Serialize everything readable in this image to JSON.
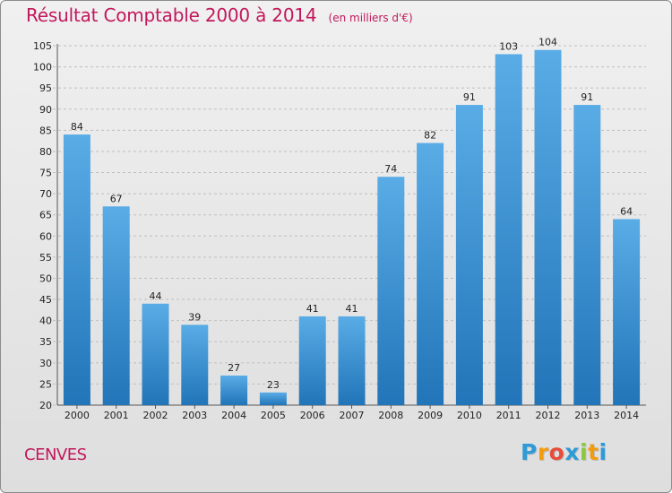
{
  "header": {
    "title": "Résultat Comptable 2000 à 2014",
    "unit_note": "(en milliers d'€)"
  },
  "footer": {
    "commune": "CENVES",
    "brand_letters": [
      "P",
      "r",
      "o",
      "x",
      "i",
      "t",
      "i"
    ],
    "brand_colors": [
      "#2e9ad6",
      "#f39c12",
      "#e74c3c",
      "#2e9ad6",
      "#8dc63f",
      "#f39c12",
      "#2e9ad6"
    ]
  },
  "colors": {
    "title": "#c2185b",
    "bar_light": "#5aace6",
    "bar_dark": "#2175b8",
    "grid": "#bfbfbf"
  },
  "chart_data": {
    "type": "bar",
    "title": "Résultat Comptable 2000 à 2014",
    "subtitle": "(en milliers d'€)",
    "xlabel": "",
    "ylabel": "",
    "categories": [
      "2000",
      "2001",
      "2002",
      "2003",
      "2004",
      "2005",
      "2006",
      "2007",
      "2008",
      "2009",
      "2010",
      "2011",
      "2012",
      "2013",
      "2014"
    ],
    "values": [
      84,
      67,
      44,
      39,
      27,
      23,
      41,
      41,
      74,
      82,
      91,
      103,
      104,
      91,
      64
    ],
    "ylim": [
      20,
      105
    ],
    "yticks": [
      20,
      25,
      30,
      35,
      40,
      45,
      50,
      55,
      60,
      65,
      70,
      75,
      80,
      85,
      90,
      95,
      100,
      105
    ],
    "grid": true,
    "legend": "none",
    "data_labels": true
  }
}
